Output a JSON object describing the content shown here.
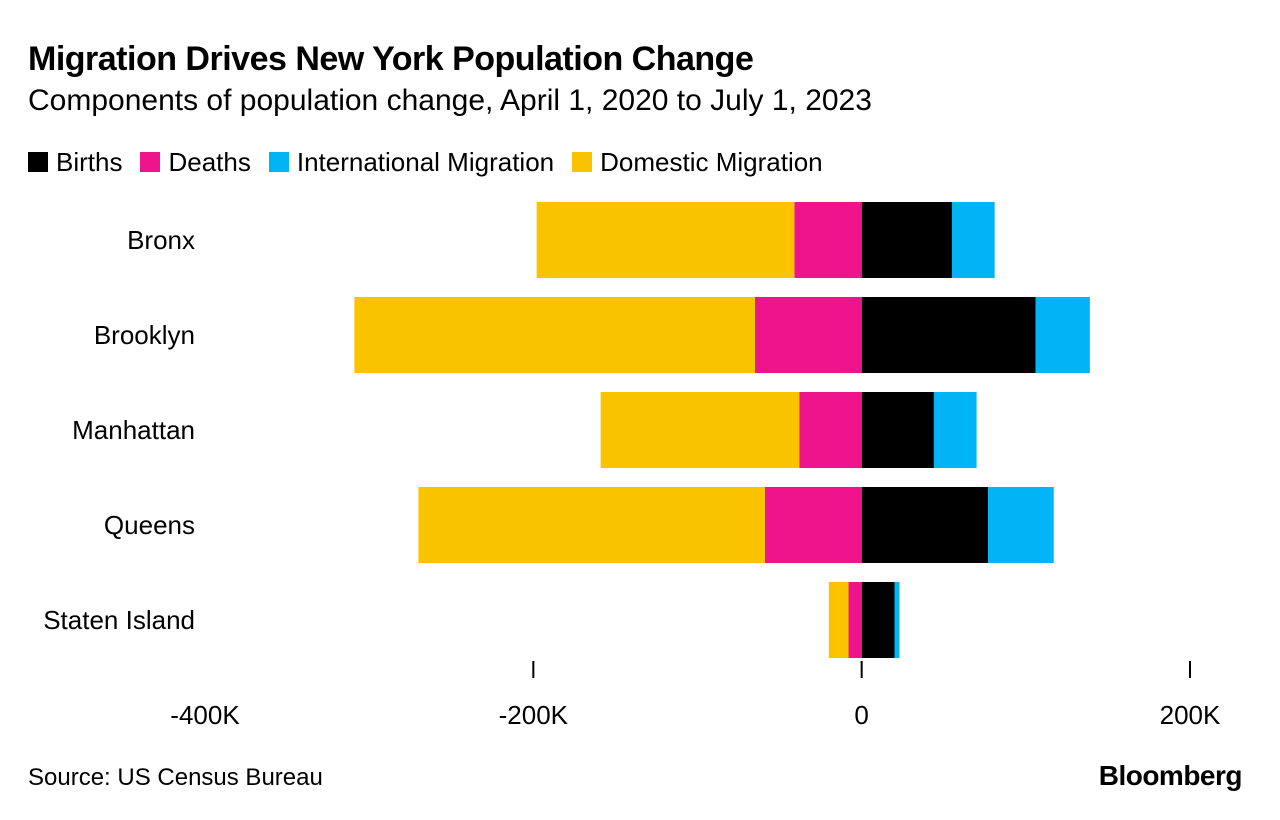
{
  "title": "Migration Drives New York Population Change",
  "subtitle": "Components of population change, April 1, 2020 to July 1, 2023",
  "colors": {
    "births": "#000000",
    "deaths": "#f0148c",
    "international": "#00b4f5",
    "domestic": "#fac300"
  },
  "legend": [
    {
      "label": "Births",
      "color": "#000000"
    },
    {
      "label": "Deaths",
      "color": "#f0148c"
    },
    {
      "label": "International Migration",
      "color": "#00b4f5"
    },
    {
      "label": "Domestic Migration",
      "color": "#fac300"
    }
  ],
  "chart_data": {
    "type": "bar",
    "orientation": "horizontal",
    "stacked": "diverging",
    "title": "Migration Drives New York Population Change",
    "subtitle": "Components of population change, April 1, 2020 to July 1, 2023",
    "categories": [
      "Bronx",
      "Brooklyn",
      "Manhattan",
      "Queens",
      "Staten Island"
    ],
    "series": [
      {
        "name": "Births",
        "values": [
          55000,
          106000,
          44000,
          77000,
          20000
        ]
      },
      {
        "name": "Deaths",
        "values": [
          -41000,
          -65000,
          -38000,
          -59000,
          -8000
        ]
      },
      {
        "name": "International Migration",
        "values": [
          26000,
          33000,
          26000,
          40000,
          3000
        ]
      },
      {
        "name": "Domestic Migration",
        "values": [
          -157000,
          -244000,
          -121000,
          -211000,
          -12000
        ]
      }
    ],
    "xlim": [
      -400000,
      200000
    ],
    "xticks": [
      -400000,
      -200000,
      0,
      200000
    ],
    "xtick_labels": [
      "-400K",
      "-200K",
      "0",
      "200K"
    ],
    "xlabel": "",
    "ylabel": "",
    "legend_position": "top-left",
    "grid": false
  },
  "source": "Source: US Census Bureau",
  "brand": "Bloomberg"
}
